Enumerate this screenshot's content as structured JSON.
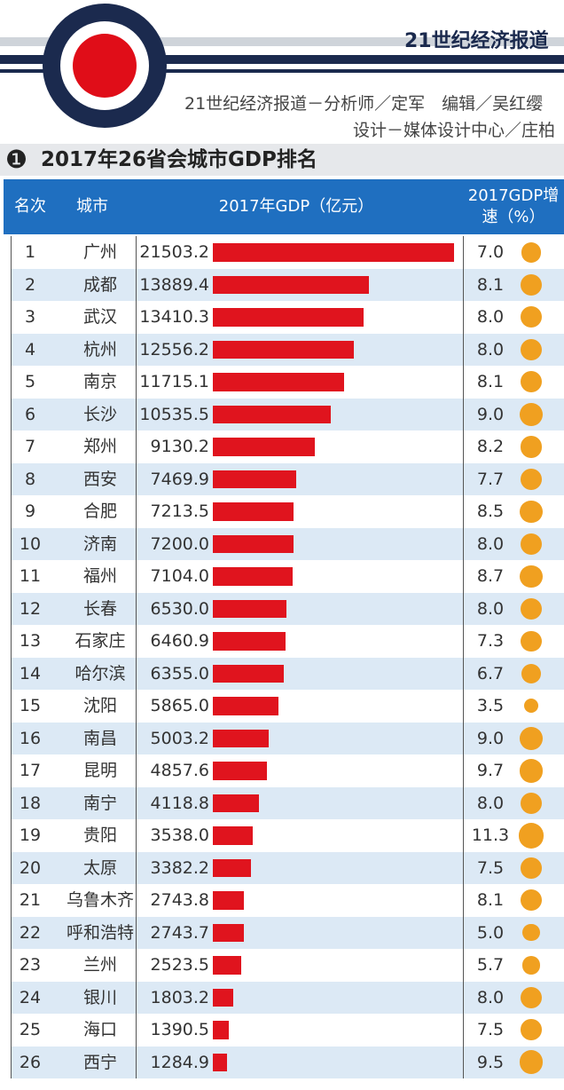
{
  "header": {
    "brand": "21世纪经济报道",
    "credit1": "21世纪经济报道－分析师／定军　编辑／吴红缨",
    "credit2": "设计－媒体设计中心／庄柏"
  },
  "chart_data": {
    "type": "bar",
    "section_number": "❶",
    "title": "2017年26省会城市GDP排名",
    "rank_header": "名次",
    "category_header": "城市",
    "ranks": [
      1,
      2,
      3,
      4,
      5,
      6,
      7,
      8,
      9,
      10,
      11,
      12,
      13,
      14,
      15,
      16,
      17,
      18,
      19,
      20,
      21,
      22,
      23,
      24,
      25,
      26
    ],
    "categories": [
      "广州",
      "成都",
      "武汉",
      "杭州",
      "南京",
      "长沙",
      "郑州",
      "西安",
      "合肥",
      "济南",
      "福州",
      "长春",
      "石家庄",
      "哈尔滨",
      "沈阳",
      "南昌",
      "昆明",
      "南宁",
      "贵阳",
      "太原",
      "乌鲁木齐",
      "呼和浩特",
      "兰州",
      "银川",
      "海口",
      "西宁"
    ],
    "series": [
      {
        "name": "2017年GDP（亿元）",
        "color": "#e0141e",
        "values": [
          21503.2,
          13889.4,
          13410.3,
          12556.2,
          11715.1,
          10535.5,
          9130.2,
          7469.9,
          7213.5,
          7200.0,
          7104.0,
          6530.0,
          6460.9,
          6355.0,
          5865.0,
          5003.2,
          4857.6,
          4118.8,
          3538.0,
          3382.2,
          2743.8,
          2743.7,
          2523.5,
          1803.2,
          1390.5,
          1284.9
        ],
        "value_labels": [
          "21503.2",
          "13889.4",
          "13410.3",
          "12556.2",
          "11715.1",
          "10535.5",
          "9130.2",
          "7469.9",
          "7213.5",
          "7200.0",
          "7104.0",
          "6530.0",
          "6460.9",
          "6355.0",
          "5865.0",
          "5003.2",
          "4857.6",
          "4118.8",
          "3538.0",
          "3382.2",
          "2743.8",
          "2743.7",
          "2523.5",
          "1803.2",
          "1390.5",
          "1284.9"
        ]
      },
      {
        "name": "2017GDP增速（%）",
        "color": "#f0a020",
        "values": [
          7.0,
          8.1,
          8.0,
          8.0,
          8.1,
          9.0,
          8.2,
          7.7,
          8.5,
          8.0,
          8.7,
          8.0,
          7.3,
          6.7,
          3.5,
          9.0,
          9.7,
          8.0,
          11.3,
          7.5,
          8.1,
          5.0,
          5.7,
          8.0,
          7.5,
          9.5
        ],
        "value_labels": [
          "7.0",
          "8.1",
          "8.0",
          "8.0",
          "8.1",
          "9.0",
          "8.2",
          "7.7",
          "8.5",
          "8.0",
          "8.7",
          "8.0",
          "7.3",
          "6.7",
          "3.5",
          "9.0",
          "9.7",
          "8.0",
          "11.3",
          "7.5",
          "8.1",
          "5.0",
          "5.7",
          "8.0",
          "7.5",
          "9.5"
        ]
      }
    ]
  }
}
